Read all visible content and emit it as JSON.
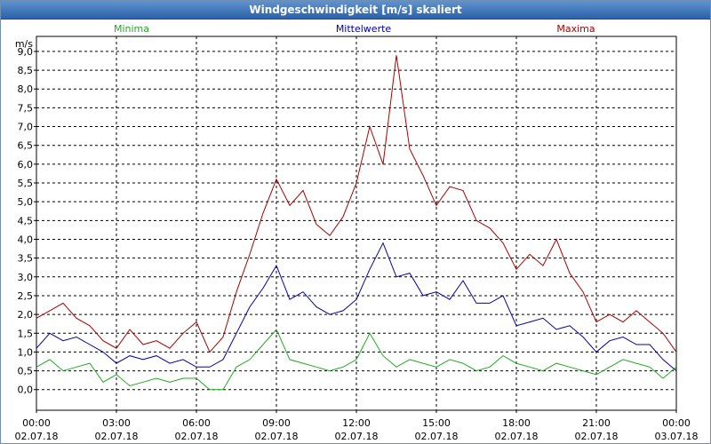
{
  "window": {
    "title": "Windgeschwindigkeit [m/s] skaliert"
  },
  "colors": {
    "minima": "#22aa22",
    "mittelwerte": "#0000aa",
    "maxima": "#aa0000",
    "grid": "#000000",
    "axis": "#000000"
  },
  "chart_data": {
    "type": "line",
    "title": "Windgeschwindigkeit [m/s] skaliert",
    "ylabel": "m/s",
    "ylim": [
      -0.55,
      9.4
    ],
    "yticks": [
      "0,0",
      "0,5",
      "1,0",
      "1,5",
      "2,0",
      "2,5",
      "3,0",
      "3,5",
      "4,0",
      "4,5",
      "5,0",
      "5,5",
      "6,0",
      "6,5",
      "7,0",
      "7,5",
      "8,0",
      "8,5",
      "9,0"
    ],
    "xlim": [
      0,
      24
    ],
    "xticks": [
      {
        "time": "00:00",
        "date": "02.07.18"
      },
      {
        "time": "03:00",
        "date": "02.07.18"
      },
      {
        "time": "06:00",
        "date": "02.07.18"
      },
      {
        "time": "09:00",
        "date": "02.07.18"
      },
      {
        "time": "12:00",
        "date": "02.07.18"
      },
      {
        "time": "15:00",
        "date": "02.07.18"
      },
      {
        "time": "18:00",
        "date": "02.07.18"
      },
      {
        "time": "21:00",
        "date": "02.07.18"
      },
      {
        "time": "00:00",
        "date": "03.07.18"
      }
    ],
    "grid": true,
    "legend_position": "top",
    "series": [
      {
        "name": "Minima",
        "key": "minima",
        "x": [
          0,
          0.5,
          1,
          1.5,
          2,
          2.5,
          3,
          3.5,
          4,
          4.5,
          5,
          5.5,
          6,
          6.5,
          7,
          7.5,
          8,
          8.5,
          9,
          9.5,
          10,
          10.5,
          11,
          11.5,
          12,
          12.5,
          13,
          13.5,
          14,
          14.5,
          15,
          15.5,
          16,
          16.5,
          17,
          17.5,
          18,
          18.5,
          19,
          19.5,
          20,
          20.5,
          21,
          21.5,
          22,
          22.5,
          23,
          23.5,
          24
        ],
        "values": [
          0.6,
          0.8,
          0.5,
          0.6,
          0.7,
          0.2,
          0.4,
          0.1,
          0.2,
          0.3,
          0.2,
          0.3,
          0.3,
          0.0,
          0.0,
          0.6,
          0.8,
          1.2,
          1.6,
          0.8,
          0.7,
          0.6,
          0.5,
          0.6,
          0.8,
          1.5,
          0.9,
          0.6,
          0.8,
          0.7,
          0.6,
          0.8,
          0.7,
          0.5,
          0.6,
          0.9,
          0.7,
          0.6,
          0.5,
          0.7,
          0.6,
          0.5,
          0.4,
          0.6,
          0.8,
          0.7,
          0.6,
          0.3,
          0.6
        ]
      },
      {
        "name": "Mittelwerte",
        "key": "mittelwerte",
        "x": [
          0,
          0.5,
          1,
          1.5,
          2,
          2.5,
          3,
          3.5,
          4,
          4.5,
          5,
          5.5,
          6,
          6.5,
          7,
          7.5,
          8,
          8.5,
          9,
          9.5,
          10,
          10.5,
          11,
          11.5,
          12,
          12.5,
          13,
          13.5,
          14,
          14.5,
          15,
          15.5,
          16,
          16.5,
          17,
          17.5,
          18,
          18.5,
          19,
          19.5,
          20,
          20.5,
          21,
          21.5,
          22,
          22.5,
          23,
          23.5,
          24
        ],
        "values": [
          1.1,
          1.5,
          1.3,
          1.4,
          1.2,
          1.0,
          0.7,
          0.9,
          0.8,
          0.9,
          0.7,
          0.8,
          0.6,
          0.6,
          0.8,
          1.5,
          2.2,
          2.7,
          3.3,
          2.4,
          2.6,
          2.2,
          2.0,
          2.1,
          2.4,
          3.2,
          3.9,
          3.0,
          3.1,
          2.5,
          2.6,
          2.4,
          2.9,
          2.3,
          2.3,
          2.5,
          1.7,
          1.8,
          1.9,
          1.6,
          1.7,
          1.4,
          1.0,
          1.3,
          1.4,
          1.2,
          1.2,
          0.8,
          0.5
        ]
      },
      {
        "name": "Maxima",
        "key": "maxima",
        "x": [
          0,
          0.5,
          1,
          1.5,
          2,
          2.5,
          3,
          3.5,
          4,
          4.5,
          5,
          5.5,
          6,
          6.5,
          7,
          7.5,
          8,
          8.5,
          9,
          9.5,
          10,
          10.5,
          11,
          11.5,
          12,
          12.5,
          13,
          13.5,
          14,
          14.5,
          15,
          15.5,
          16,
          16.5,
          17,
          17.5,
          18,
          18.5,
          19,
          19.5,
          20,
          20.5,
          21,
          21.5,
          22,
          22.5,
          23,
          23.5,
          24
        ],
        "values": [
          1.9,
          2.1,
          2.3,
          1.9,
          1.7,
          1.3,
          1.1,
          1.6,
          1.2,
          1.3,
          1.1,
          1.5,
          1.8,
          1.0,
          1.4,
          2.6,
          3.6,
          4.7,
          5.6,
          4.9,
          5.3,
          4.4,
          4.1,
          4.6,
          5.5,
          7.0,
          6.0,
          8.9,
          6.4,
          5.7,
          4.9,
          5.4,
          5.3,
          4.5,
          4.3,
          3.9,
          3.2,
          3.6,
          3.3,
          4.0,
          3.1,
          2.6,
          1.8,
          2.0,
          1.8,
          2.1,
          1.8,
          1.5,
          1.0
        ]
      }
    ]
  }
}
